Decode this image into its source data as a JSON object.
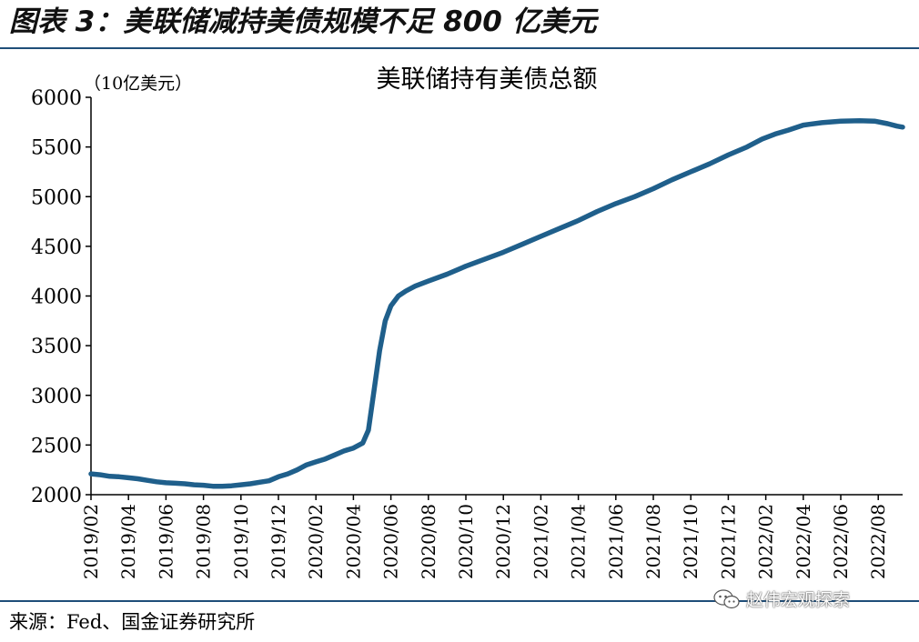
{
  "figure_title": "图表 3：美联储减持美债规模不足 800 亿美元",
  "source_text": "来源：Fed、国金证券研究所",
  "watermark_text": "赵伟宏观探索",
  "colors": {
    "line": "#1f5f8b",
    "rule": "#1f4e79",
    "axis": "#000000"
  },
  "chart_data": {
    "type": "line",
    "title": "美联储持有美债总额",
    "unit_label": "（10亿美元）",
    "ylim": [
      2000,
      6000
    ],
    "yticks": [
      "2000",
      "2500",
      "3000",
      "3500",
      "4000",
      "4500",
      "5000",
      "5500",
      "6000"
    ],
    "xticks": [
      "2019/02",
      "2019/04",
      "2019/06",
      "2019/08",
      "2019/10",
      "2019/12",
      "2020/02",
      "2020/04",
      "2020/06",
      "2020/08",
      "2020/10",
      "2020/12",
      "2021/02",
      "2021/04",
      "2021/06",
      "2021/08",
      "2021/10",
      "2021/12",
      "2022/02",
      "2022/04",
      "2022/06",
      "2022/08"
    ],
    "x_range_months": [
      0,
      43.3
    ],
    "series": [
      {
        "points": [
          [
            0,
            2210
          ],
          [
            0.5,
            2200
          ],
          [
            1,
            2185
          ],
          [
            1.5,
            2180
          ],
          [
            2,
            2170
          ],
          [
            2.5,
            2160
          ],
          [
            3,
            2145
          ],
          [
            3.5,
            2130
          ],
          [
            4,
            2120
          ],
          [
            4.5,
            2115
          ],
          [
            5,
            2110
          ],
          [
            5.5,
            2100
          ],
          [
            6,
            2095
          ],
          [
            6.5,
            2085
          ],
          [
            7,
            2085
          ],
          [
            7.5,
            2090
          ],
          [
            8,
            2100
          ],
          [
            8.5,
            2110
          ],
          [
            9,
            2125
          ],
          [
            9.5,
            2140
          ],
          [
            10,
            2180
          ],
          [
            10.5,
            2210
          ],
          [
            11,
            2250
          ],
          [
            11.5,
            2300
          ],
          [
            12,
            2330
          ],
          [
            12.5,
            2360
          ],
          [
            13,
            2400
          ],
          [
            13.5,
            2440
          ],
          [
            14,
            2470
          ],
          [
            14.5,
            2520
          ],
          [
            14.8,
            2650
          ],
          [
            15.1,
            3050
          ],
          [
            15.4,
            3450
          ],
          [
            15.7,
            3750
          ],
          [
            16,
            3900
          ],
          [
            16.4,
            4000
          ],
          [
            16.8,
            4050
          ],
          [
            17.3,
            4100
          ],
          [
            18,
            4150
          ],
          [
            19,
            4220
          ],
          [
            20,
            4300
          ],
          [
            21,
            4370
          ],
          [
            22,
            4440
          ],
          [
            23,
            4520
          ],
          [
            24,
            4600
          ],
          [
            25,
            4680
          ],
          [
            26,
            4760
          ],
          [
            27,
            4850
          ],
          [
            28,
            4930
          ],
          [
            29,
            5000
          ],
          [
            30,
            5080
          ],
          [
            31,
            5170
          ],
          [
            32,
            5250
          ],
          [
            33,
            5330
          ],
          [
            34,
            5420
          ],
          [
            35,
            5500
          ],
          [
            35.8,
            5580
          ],
          [
            36.5,
            5630
          ],
          [
            37.2,
            5670
          ],
          [
            38,
            5720
          ],
          [
            39,
            5745
          ],
          [
            40,
            5760
          ],
          [
            41,
            5765
          ],
          [
            41.8,
            5760
          ],
          [
            42.5,
            5735
          ],
          [
            43,
            5710
          ],
          [
            43.3,
            5700
          ]
        ]
      }
    ]
  }
}
